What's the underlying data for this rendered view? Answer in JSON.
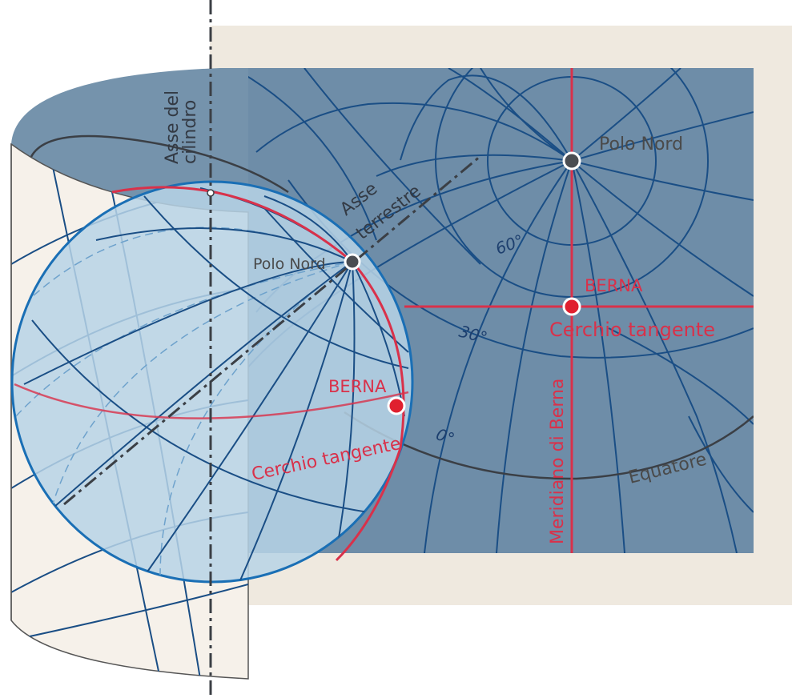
{
  "labels": {
    "cylinder_axis_line1": "Asse del",
    "cylinder_axis_line2": "cilindro",
    "earth_axis_line1": "Asse",
    "earth_axis_line2": "terrestre",
    "north_pole_globe": "Polo Nord",
    "north_pole_map": "Polo Nord",
    "bern_globe": "BERNA",
    "bern_map": "BERNA",
    "tangent_circle_globe": "Cerchio tangente",
    "tangent_circle_map": "Cerchio tangente",
    "latitude_60": "60°",
    "latitude_30": "30°",
    "latitude_0": "0°",
    "equator": "Equatore",
    "bern_meridian": "Meridiano di Berna"
  },
  "colors": {
    "map_background": "#6e8da8",
    "paper": "#efe9df",
    "cylinder_outer": "#f6f1ea",
    "globe_fill": "#b7d3e6",
    "grid_line": "#1a4e85",
    "red_line": "#d9314a",
    "pole_marker": "#4a4d52",
    "bern_marker": "#e0202f"
  }
}
